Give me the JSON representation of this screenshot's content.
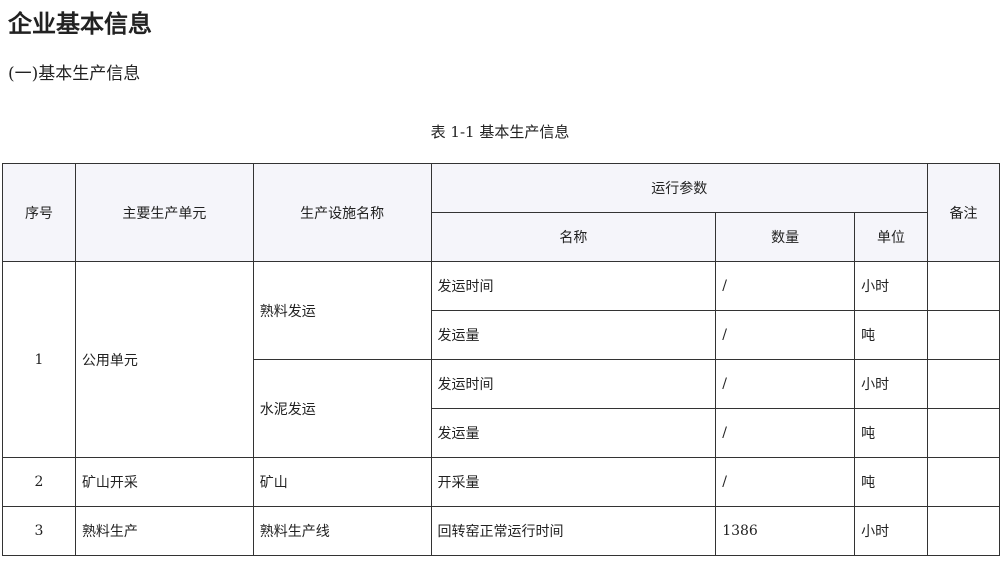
{
  "title": "企业基本信息",
  "subtitle": "(一)基本生产信息",
  "caption": "表 1-1  基本生产信息",
  "headers": {
    "seq": "序号",
    "unit": "主要生产单元",
    "facility": "生产设施名称",
    "params": "运行参数",
    "name": "名称",
    "qty": "数量",
    "uom": "单位",
    "remark": "备注"
  },
  "rows": [
    {
      "seq": "1",
      "unit": "公用单元",
      "facility": "熟料发运",
      "name": "发运时间",
      "qty": "/",
      "uom": "小时"
    },
    {
      "name": "发运量",
      "qty": "/",
      "uom": "吨"
    },
    {
      "facility": "水泥发运",
      "name": "发运时间",
      "qty": "/",
      "uom": "小时"
    },
    {
      "name": "发运量",
      "qty": "/",
      "uom": "吨"
    },
    {
      "seq": "2",
      "unit": "矿山开采",
      "facility": "矿山",
      "name": "开采量",
      "qty": "/",
      "uom": "吨"
    },
    {
      "seq": "3",
      "unit": "熟料生产",
      "facility": "熟料生产线",
      "name": "回转窑正常运行时间",
      "qty": "1386",
      "uom": "小时"
    }
  ]
}
